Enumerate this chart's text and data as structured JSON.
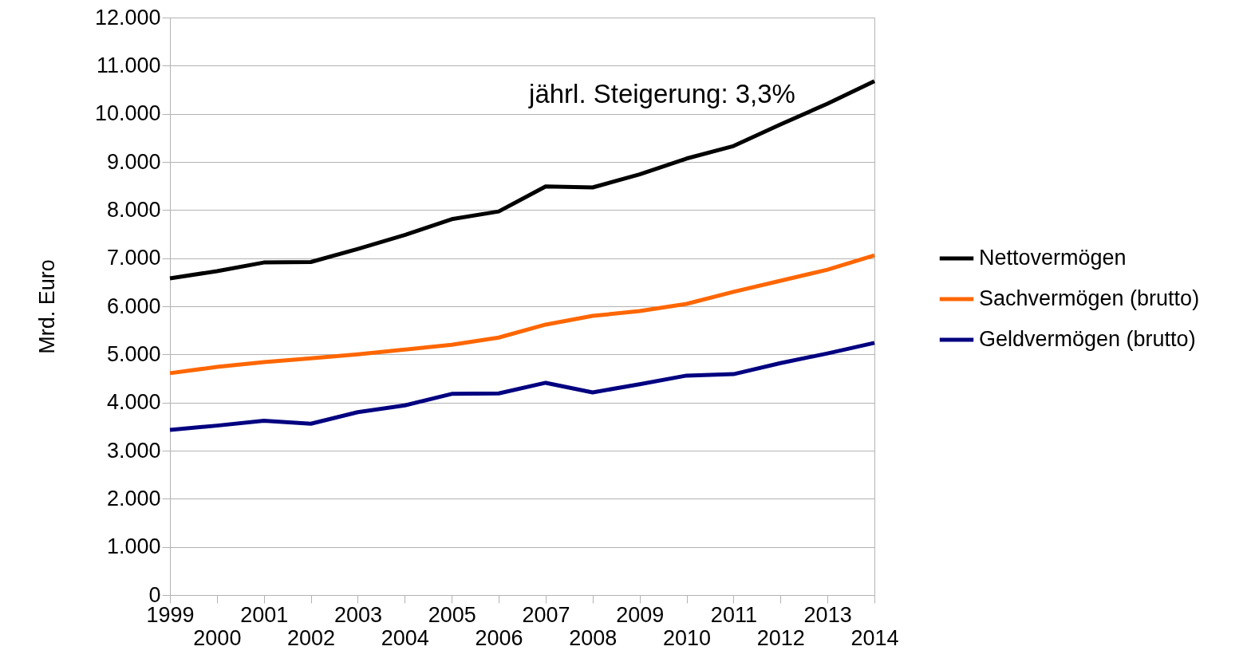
{
  "chart_data": {
    "type": "line",
    "ylabel": "Mrd. Euro",
    "categories": [
      "1999",
      "2000",
      "2001",
      "2002",
      "2003",
      "2004",
      "2005",
      "2006",
      "2007",
      "2008",
      "2009",
      "2010",
      "2011",
      "2012",
      "2013",
      "2014"
    ],
    "series": [
      {
        "name": "Nettovermögen",
        "color": "#000000",
        "values": [
          6580,
          6730,
          6910,
          6920,
          7190,
          7480,
          7810,
          7970,
          8490,
          8470,
          8740,
          9070,
          9330,
          9780,
          10210,
          10680
        ]
      },
      {
        "name": "Sachvermögen (brutto)",
        "color": "#ff6600",
        "values": [
          4610,
          4740,
          4840,
          4920,
          5000,
          5100,
          5200,
          5350,
          5620,
          5800,
          5900,
          6050,
          6300,
          6530,
          6760,
          7060
        ]
      },
      {
        "name": "Geldvermögen (brutto)",
        "color": "#000080",
        "values": [
          3430,
          3520,
          3620,
          3560,
          3800,
          3940,
          4180,
          4190,
          4410,
          4210,
          4380,
          4560,
          4590,
          4820,
          5020,
          5240
        ]
      }
    ],
    "ylim": [
      0,
      12000
    ],
    "yticks": [
      {
        "value": 0,
        "label": "0"
      },
      {
        "value": 1000,
        "label": "1.000"
      },
      {
        "value": 2000,
        "label": "2.000"
      },
      {
        "value": 3000,
        "label": "3.000"
      },
      {
        "value": 4000,
        "label": "4.000"
      },
      {
        "value": 5000,
        "label": "5.000"
      },
      {
        "value": 6000,
        "label": "6.000"
      },
      {
        "value": 7000,
        "label": "7.000"
      },
      {
        "value": 8000,
        "label": "8.000"
      },
      {
        "value": 9000,
        "label": "9.000"
      },
      {
        "value": 10000,
        "label": "10.000"
      },
      {
        "value": 11000,
        "label": "11.000"
      },
      {
        "value": 12000,
        "label": "12.000"
      }
    ],
    "annotations": [
      "jährl. Steigerung: 3,3%"
    ],
    "grid": "y",
    "legend": "right",
    "marker": "none",
    "line_style": "solid"
  }
}
